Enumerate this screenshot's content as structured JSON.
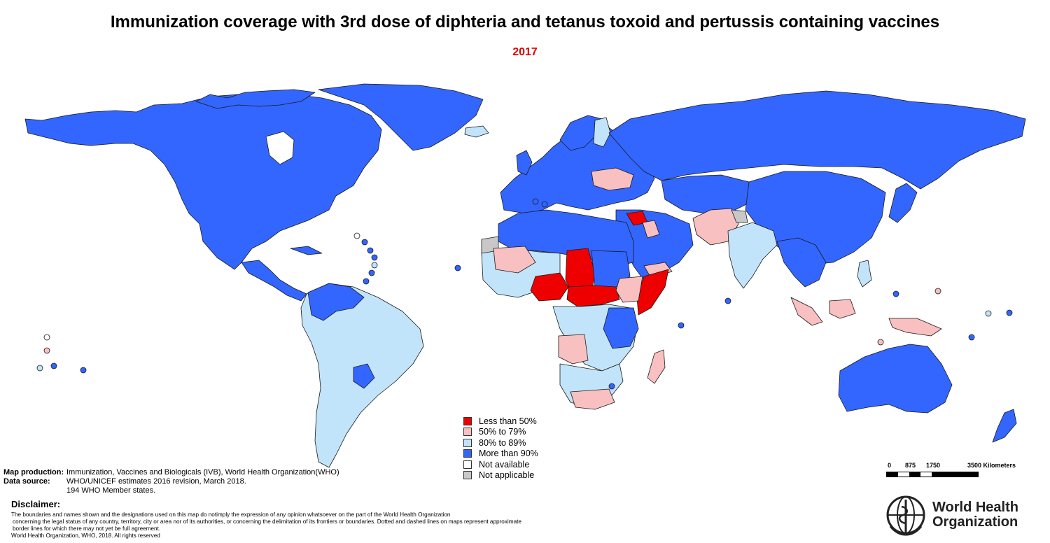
{
  "title": "Immunization coverage with 3rd dose of diphteria and tetanus toxoid and pertussis containing vaccines",
  "year": "2017",
  "colors": {
    "less_than_50": "#ee0000",
    "50_to_79": "#f8c0c0",
    "80_to_89": "#c2e4fa",
    "more_than_90": "#3366ff",
    "not_available": "#ffffff",
    "not_applicable": "#c8c8c8",
    "title_year": "#e00000"
  },
  "legend": [
    {
      "label": "Less than 50%",
      "color": "#ee0000"
    },
    {
      "label": "50% to 79%",
      "color": "#f8c0c0"
    },
    {
      "label": "80% to 89%",
      "color": "#c2e4fa"
    },
    {
      "label": "More than 90%",
      "color": "#3366ff"
    },
    {
      "label": "Not available",
      "color": "#ffffff"
    },
    {
      "label": "Not applicable",
      "color": "#c8c8c8"
    }
  ],
  "credits": {
    "production_key": "Map production:",
    "production_value": "Immunization, Vaccines and Biologicals (IVB), World Health Organization(WHO)",
    "source_key": "Data source:",
    "source_value": "WHO/UNICEF estimates 2016 revision, March 2018.",
    "members": "194 WHO Member states."
  },
  "disclaimer": {
    "heading": "Disclaimer:",
    "line1": "The boundaries and names shown and the designations used on this map do notimply the expression of any opinion whatsoever on the part of the World Health Organization",
    "line2": "concerning the legal status of any country, territory, city or area nor of its authorities, or concerning the delimitation of its frontiers or boundaries. Dotted and dashed lines on maps represent approximate",
    "line3": "border lines for which there may not yet be full agreement.",
    "line4": "World Health Organization, WHO, 2018. All rights reserved"
  },
  "scale": {
    "labels": [
      "0",
      "875",
      "1750",
      "3500 Kilometers"
    ]
  },
  "logo": {
    "line1": "World Health",
    "line2": "Organization",
    "icon": "who-emblem-icon"
  }
}
